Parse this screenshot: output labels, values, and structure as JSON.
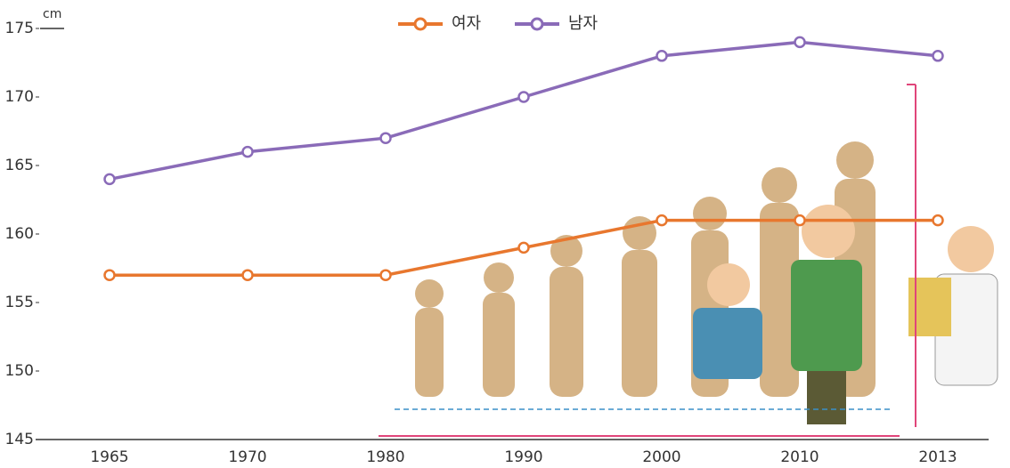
{
  "chart_data": {
    "type": "line",
    "y_unit": "cm",
    "categories": [
      "1965",
      "1970",
      "1980",
      "1990",
      "2000",
      "2010",
      "2013"
    ],
    "series": [
      {
        "name": "여자",
        "color": "#e8772e",
        "values": [
          157,
          157,
          157,
          159,
          161,
          161,
          161
        ]
      },
      {
        "name": "남자",
        "color": "#8a6bb8",
        "values": [
          164,
          166,
          167,
          170,
          173,
          174,
          173
        ]
      }
    ],
    "ylim": [
      145,
      175
    ],
    "yticks": [
      145,
      150,
      155,
      160,
      165,
      170,
      175
    ],
    "grid": false
  }
}
